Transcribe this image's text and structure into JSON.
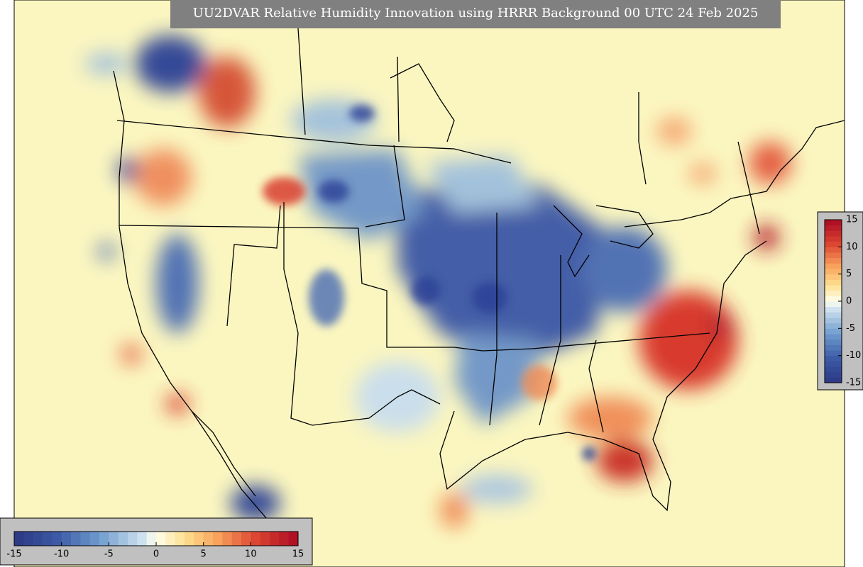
{
  "title": "UU2DVAR Relative Humidity Innovation using HRRR Background 00 UTC 24 Feb 2025",
  "colorbars": [
    {
      "orientation": "vertical",
      "range": [
        -15,
        15
      ],
      "ticks": [
        15,
        10,
        5,
        0,
        -5,
        -10,
        -15
      ]
    },
    {
      "orientation": "horizontal",
      "range": [
        -15,
        15
      ],
      "ticks": [
        -15,
        -10,
        -5,
        0,
        5,
        10,
        15
      ]
    }
  ]
}
